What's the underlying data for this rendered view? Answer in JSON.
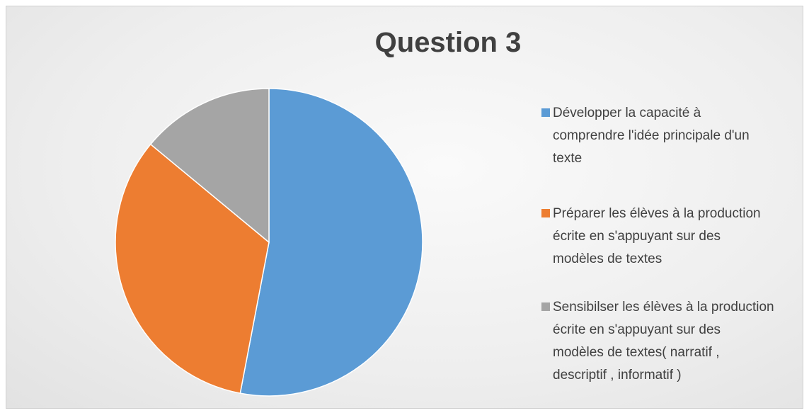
{
  "chart_data": {
    "type": "pie",
    "title": "Question 3",
    "categories": [
      "Développer la capacité à comprendre l'idée principale d'un texte",
      "Préparer les élèves à la production écrite en s'appuyant sur des modèles de textes",
      "Sensibilser les élèves à la production écrite en s'appuyant sur des modèles de textes( narratif , descriptif , informatif )"
    ],
    "values": [
      53,
      33,
      14
    ],
    "colors": [
      "#5b9bd5",
      "#ed7d31",
      "#a5a5a5"
    ],
    "legend": "right"
  }
}
